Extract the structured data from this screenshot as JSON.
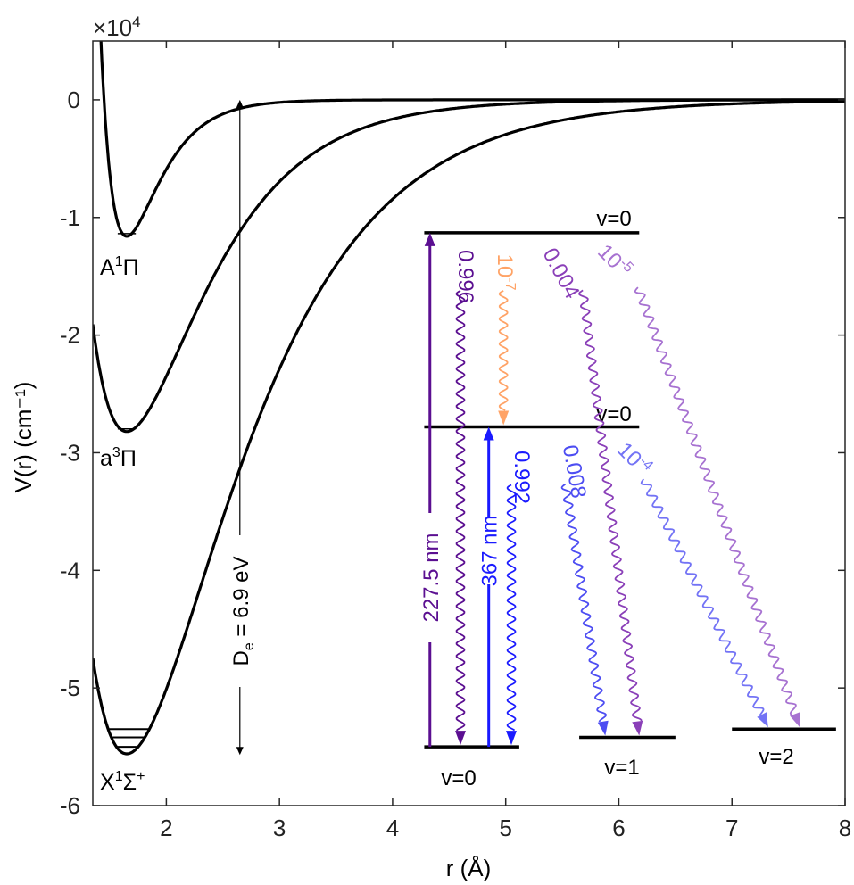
{
  "chart_data": {
    "type": "line",
    "title": "",
    "xlabel": "r (Å)",
    "ylabel": "V(r) (cm⁻¹)",
    "xlim": [
      1.35,
      8
    ],
    "ylim": [
      -60000,
      5000
    ],
    "y_scale_label": "×10",
    "y_scale_exponent": "4",
    "x_ticks": [
      2,
      3,
      4,
      5,
      6,
      7,
      8
    ],
    "x_tick_labels": [
      "2",
      "3",
      "4",
      "5",
      "6",
      "7",
      "8"
    ],
    "y_ticks": [
      0,
      -10000,
      -20000,
      -30000,
      -40000,
      -50000,
      -60000
    ],
    "y_tick_labels": [
      "0",
      "-1",
      "-2",
      "-3",
      "-4",
      "-5",
      "-6"
    ],
    "series": [
      {
        "name": "A¹Π",
        "label": "A¹Π",
        "re": 1.65,
        "De": 11600,
        "a": 3.45,
        "color": "#000000"
      },
      {
        "name": "a³Π",
        "label": "a³Π",
        "re": 1.65,
        "De": 28200,
        "a": 1.5,
        "color": "#000000"
      },
      {
        "name": "X¹Σ⁺",
        "label": "X¹Σ⁺",
        "re": 1.65,
        "De": 55600,
        "a": 1.08,
        "color": "#000000"
      }
    ],
    "ground_vib_levels": [
      -55000,
      -54200,
      -53500
    ],
    "dissociation": {
      "label": "D",
      "subscript": "e",
      "rest": " = 6.9 eV",
      "x": 2.65,
      "from": 0,
      "to": -55700
    },
    "levels": [
      {
        "name": "A-v0",
        "label": "v=0",
        "y": -11300,
        "x1": 4.28,
        "x2": 6.18
      },
      {
        "name": "a-v0",
        "label": "v=0",
        "y": -27800,
        "x1": 4.28,
        "x2": 6.18
      },
      {
        "name": "X-v0",
        "label": "v=0",
        "y": -55000,
        "x1": 4.28,
        "x2": 5.12
      },
      {
        "name": "X-v1",
        "label": "v=1",
        "y": -54200,
        "x1": 5.65,
        "x2": 6.5
      },
      {
        "name": "X-v2",
        "label": "v=2",
        "y": -53500,
        "x1": 7.0,
        "x2": 7.92
      }
    ],
    "excitations": [
      {
        "name": "A-excitation",
        "label": "227.5 nm",
        "x": 4.33,
        "from": -55000,
        "to": -11300,
        "color": "#5b0f91"
      },
      {
        "name": "a-excitation",
        "label": "367 nm",
        "x": 4.85,
        "from": -55000,
        "to": -27800,
        "color": "#1a1aff"
      }
    ],
    "decays": [
      {
        "name": "A-to-X-v0",
        "label": "0.996",
        "x1": 4.6,
        "y1": -11300,
        "x2": 4.6,
        "y2": -55000,
        "color": "#5b0f91"
      },
      {
        "name": "A-to-a",
        "label": "10⁻⁷",
        "x1": 4.98,
        "y1": -11300,
        "x2": 4.98,
        "y2": -27800,
        "color": "#ffa366"
      },
      {
        "name": "A-to-X-v1",
        "label": "0.004",
        "x1": 5.62,
        "y1": -11300,
        "x2": 6.18,
        "y2": -54200,
        "color": "#8a3fb8"
      },
      {
        "name": "A-to-X-v2",
        "label": "10⁻⁵",
        "x1": 6.0,
        "y1": -11300,
        "x2": 7.6,
        "y2": -53500,
        "color": "#a772d1"
      },
      {
        "name": "a-to-X-v0",
        "label": "0.992",
        "x1": 5.05,
        "y1": -27800,
        "x2": 5.05,
        "y2": -55000,
        "color": "#1a1aff"
      },
      {
        "name": "a-to-X-v1",
        "label": "0.008",
        "x1": 5.45,
        "y1": -27800,
        "x2": 5.88,
        "y2": -54200,
        "color": "#4d4df2"
      },
      {
        "name": "a-to-X-v2",
        "label": "10⁻⁴",
        "x1": 6.0,
        "y1": -27800,
        "x2": 7.32,
        "y2": -53500,
        "color": "#7373f5"
      }
    ]
  }
}
